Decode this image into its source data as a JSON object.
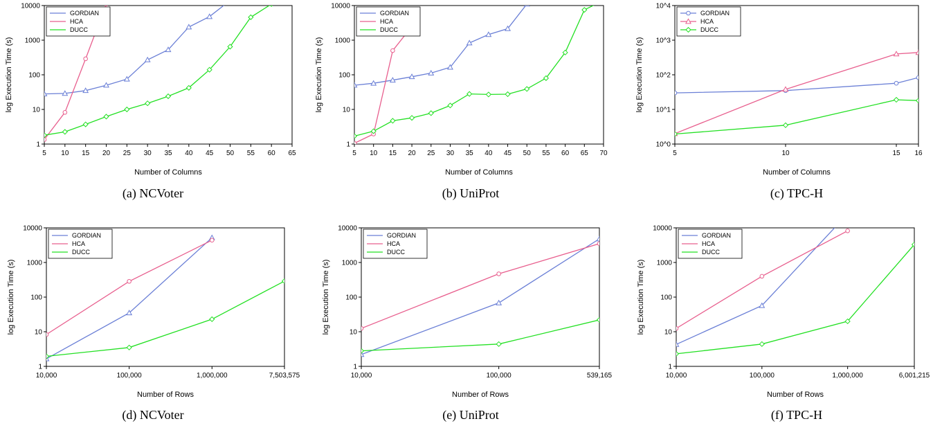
{
  "colors": {
    "GORDIAN": "#6a7fd6",
    "HCA": "#e85f8e",
    "DUCC": "#22e022"
  },
  "chart_data": [
    {
      "type": "line",
      "caption": "(a) NCVoter",
      "xlabel": "Number of Columns",
      "ylabel": "log Execution Time (s)",
      "xscale": "linear",
      "xlim": [
        5,
        65
      ],
      "xticks": [
        5,
        10,
        15,
        20,
        25,
        30,
        35,
        40,
        45,
        50,
        55,
        60,
        65
      ],
      "xtick_labels": [
        "5",
        "10",
        "15",
        "20",
        "25",
        "30",
        "35",
        "40",
        "45",
        "50",
        "55",
        "60",
        "65"
      ],
      "yscale": "log",
      "ylim": [
        1,
        10000
      ],
      "yticks": [
        1,
        10,
        100,
        1000,
        10000
      ],
      "ytick_labels": [
        "1",
        "10",
        "100",
        "1000",
        "10000"
      ],
      "legend": "top-left",
      "series": [
        {
          "name": "GORDIAN",
          "marker": "triangle",
          "x": [
            5,
            10,
            15,
            20,
            25,
            30,
            35,
            40,
            45,
            50
          ],
          "y": [
            28,
            29,
            35,
            50,
            75,
            270,
            530,
            2400,
            4800,
            14000
          ]
        },
        {
          "name": "HCA",
          "marker": "circle",
          "x": [
            5,
            10,
            15,
            20
          ],
          "y": [
            1.35,
            8.2,
            290,
            11000
          ]
        },
        {
          "name": "DUCC",
          "marker": "diamond",
          "x": [
            5,
            10,
            15,
            20,
            25,
            30,
            35,
            40,
            45,
            50,
            55,
            60,
            62
          ],
          "y": [
            1.8,
            2.25,
            3.7,
            6.2,
            10,
            15,
            24,
            42,
            140,
            650,
            4600,
            11000,
            14000
          ]
        }
      ]
    },
    {
      "type": "line",
      "caption": "(b) UniProt",
      "xlabel": "Number of Columns",
      "ylabel": "log Execution Time (s)",
      "xscale": "linear",
      "xlim": [
        5,
        70
      ],
      "xticks": [
        5,
        10,
        15,
        20,
        25,
        30,
        35,
        40,
        45,
        50,
        55,
        60,
        65,
        70
      ],
      "xtick_labels": [
        "5",
        "10",
        "15",
        "20",
        "25",
        "30",
        "35",
        "40",
        "45",
        "50",
        "55",
        "60",
        "65",
        "70"
      ],
      "yscale": "log",
      "ylim": [
        1,
        10000
      ],
      "yticks": [
        1,
        10,
        100,
        1000,
        10000
      ],
      "ytick_labels": [
        "1",
        "10",
        "100",
        "1000",
        "10000"
      ],
      "legend": "top-left",
      "series": [
        {
          "name": "GORDIAN",
          "marker": "triangle",
          "x": [
            5,
            10,
            15,
            20,
            25,
            30,
            35,
            40,
            45,
            50,
            51
          ],
          "y": [
            50,
            57,
            70,
            88,
            112,
            165,
            830,
            1450,
            2150,
            11000,
            14000
          ]
        },
        {
          "name": "HCA",
          "marker": "circle",
          "x": [
            5,
            10,
            15,
            20
          ],
          "y": [
            1.05,
            1.95,
            500,
            2500
          ]
        },
        {
          "name": "DUCC",
          "marker": "diamond",
          "x": [
            5,
            10,
            15,
            20,
            25,
            30,
            35,
            40,
            45,
            50,
            55,
            60,
            65,
            70
          ],
          "y": [
            1.7,
            2.35,
            4.7,
            5.7,
            7.8,
            13,
            28,
            27,
            27.5,
            39,
            80,
            440,
            7500,
            14000
          ]
        }
      ]
    },
    {
      "type": "line",
      "caption": "(c) TPC-H",
      "xlabel": "Number of Columns",
      "ylabel": "log Execution Time (s)",
      "xscale": "linear",
      "xlim": [
        5,
        16
      ],
      "xticks": [
        5,
        10,
        15,
        16
      ],
      "xtick_labels": [
        "5",
        "10",
        "15",
        "16"
      ],
      "yscale": "log",
      "ylim": [
        1,
        10000
      ],
      "yticks": [
        1,
        10,
        100,
        1000,
        10000
      ],
      "ytick_labels": [
        "10^0",
        "10^1",
        "10^2",
        "10^3",
        "10^4"
      ],
      "legend": "top-left",
      "series": [
        {
          "name": "GORDIAN",
          "marker": "circle",
          "x": [
            5,
            10,
            15,
            16
          ],
          "y": [
            30,
            35,
            57,
            83
          ]
        },
        {
          "name": "HCA",
          "marker": "triangle",
          "x": [
            5,
            10,
            15,
            16
          ],
          "y": [
            2,
            38,
            400,
            440
          ]
        },
        {
          "name": "DUCC",
          "marker": "diamond",
          "x": [
            5,
            10,
            15,
            16
          ],
          "y": [
            1.95,
            3.5,
            19,
            18
          ]
        }
      ]
    },
    {
      "type": "line",
      "caption": "(d) NCVoter",
      "xlabel": "Number of Rows",
      "ylabel": "log Execution Time (s)",
      "xscale": "log",
      "xlim": [
        10000,
        7503575
      ],
      "xticks": [
        10000,
        100000,
        1000000,
        7503575
      ],
      "xtick_labels": [
        "10,000",
        "100,000",
        "1,000,000",
        "7,503,575"
      ],
      "yscale": "log",
      "ylim": [
        1,
        10000
      ],
      "yticks": [
        1,
        10,
        100,
        1000,
        10000
      ],
      "ytick_labels": [
        "1",
        "10",
        "100",
        "1000",
        "10000"
      ],
      "legend": "top-left",
      "series": [
        {
          "name": "GORDIAN",
          "marker": "triangle",
          "x": [
            10000,
            100000,
            1000000
          ],
          "y": [
            1.65,
            35,
            5200
          ]
        },
        {
          "name": "HCA",
          "marker": "circle",
          "x": [
            10000,
            100000,
            1000000
          ],
          "y": [
            8.3,
            285,
            4400
          ]
        },
        {
          "name": "DUCC",
          "marker": "diamond",
          "x": [
            10000,
            100000,
            1000000,
            7503575
          ],
          "y": [
            1.95,
            3.5,
            23,
            290
          ]
        }
      ]
    },
    {
      "type": "line",
      "caption": "(e) UniProt",
      "xlabel": "Number of Rows",
      "ylabel": "log Execution Time (s)",
      "xscale": "log",
      "xlim": [
        10000,
        539165
      ],
      "xticks": [
        10000,
        100000,
        539165
      ],
      "xtick_labels": [
        "10,000",
        "100,000",
        "539,165"
      ],
      "yscale": "log",
      "ylim": [
        1,
        10000
      ],
      "yticks": [
        1,
        10,
        100,
        1000,
        10000
      ],
      "ytick_labels": [
        "1",
        "10",
        "100",
        "1000",
        "10000"
      ],
      "legend": "top-left",
      "series": [
        {
          "name": "GORDIAN",
          "marker": "triangle",
          "x": [
            10000,
            100000,
            539165
          ],
          "y": [
            2.2,
            68,
            4800
          ]
        },
        {
          "name": "HCA",
          "marker": "circle",
          "x": [
            10000,
            100000,
            539165
          ],
          "y": [
            12.5,
            470,
            3500
          ]
        },
        {
          "name": "DUCC",
          "marker": "diamond",
          "x": [
            10000,
            100000,
            539165
          ],
          "y": [
            2.8,
            4.4,
            22
          ]
        }
      ]
    },
    {
      "type": "line",
      "caption": "(f) TPC-H",
      "xlabel": "Number of Rows",
      "ylabel": "log Execution Time (s)",
      "xscale": "log",
      "xlim": [
        10000,
        6001215
      ],
      "xticks": [
        10000,
        100000,
        1000000,
        6001215
      ],
      "xtick_labels": [
        "10,000",
        "100,000",
        "1,000,000",
        "6,001,215"
      ],
      "yscale": "log",
      "ylim": [
        1,
        10000
      ],
      "yticks": [
        1,
        10,
        100,
        1000,
        10000
      ],
      "ytick_labels": [
        "1",
        "10",
        "100",
        "1000",
        "10000"
      ],
      "legend": "top-left",
      "series": [
        {
          "name": "GORDIAN",
          "marker": "triangle",
          "x": [
            10000,
            100000,
            800000
          ],
          "y": [
            4.3,
            57,
            14000
          ]
        },
        {
          "name": "HCA",
          "marker": "circle",
          "x": [
            10000,
            100000,
            1000000
          ],
          "y": [
            12.5,
            400,
            8200
          ]
        },
        {
          "name": "DUCC",
          "marker": "diamond",
          "x": [
            10000,
            100000,
            1000000,
            6001215
          ],
          "y": [
            2.3,
            4.4,
            20,
            3300
          ]
        }
      ]
    }
  ]
}
